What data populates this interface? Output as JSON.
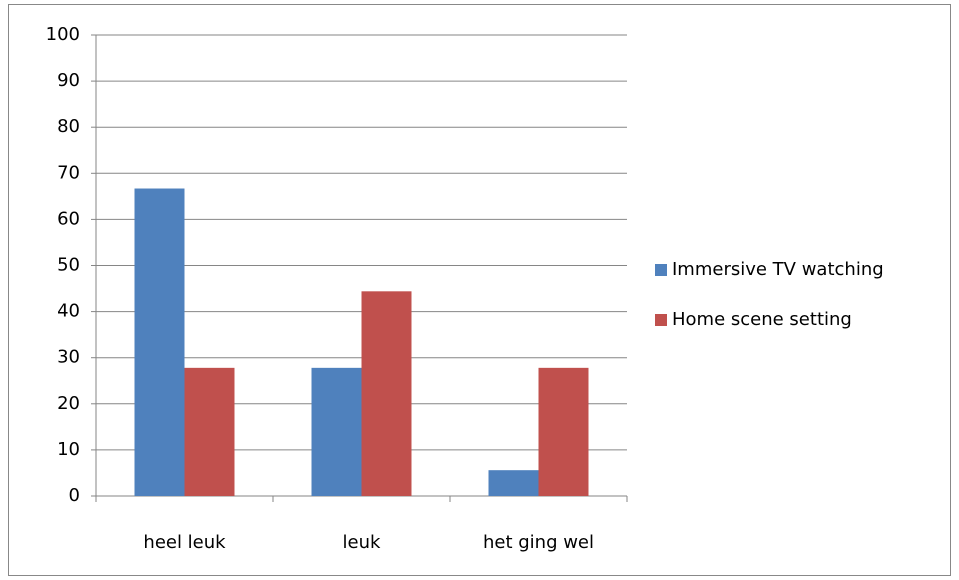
{
  "chart_data": {
    "type": "bar",
    "categories": [
      "heel leuk",
      "leuk",
      "het ging wel"
    ],
    "series": [
      {
        "name": "Immersive TV watching",
        "color": "#4f81bd",
        "values": [
          66.7,
          27.8,
          5.6
        ]
      },
      {
        "name": "Home scene setting",
        "color": "#c0504d",
        "values": [
          27.8,
          44.4,
          27.8
        ]
      }
    ],
    "ylim": [
      0,
      100
    ],
    "yticks": [
      0,
      10,
      20,
      30,
      40,
      50,
      60,
      70,
      80,
      90,
      100
    ],
    "grid": true,
    "legend": "right"
  }
}
